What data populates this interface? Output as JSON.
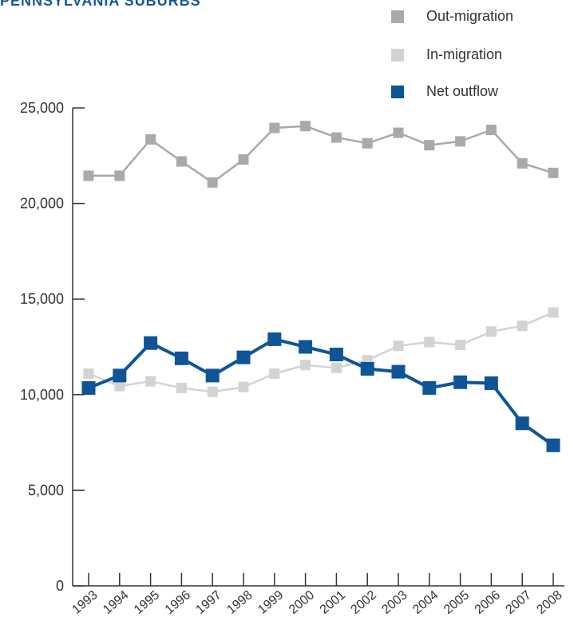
{
  "title": "PENNSYLVANIA SUBURBS",
  "chart_data": {
    "type": "line",
    "x": [
      "1993",
      "1994",
      "1995",
      "1996",
      "1997",
      "1998",
      "1999",
      "2000",
      "2001",
      "2002",
      "2003",
      "2004",
      "2005",
      "2006",
      "2007",
      "2008"
    ],
    "ylim": [
      0,
      25000
    ],
    "yticks": [
      0,
      5000,
      10000,
      15000,
      20000,
      25000
    ],
    "ytick_labels": [
      "0",
      "5,000",
      "10,000",
      "15,000",
      "20,000",
      "25,000"
    ],
    "grid": false,
    "legend_position": "top-right",
    "series": [
      {
        "name": "Out-migration",
        "color": "#a7a9ac",
        "marker": "square",
        "values": [
          21450,
          21450,
          23350,
          22200,
          21100,
          22300,
          23950,
          24050,
          23450,
          23150,
          23700,
          23050,
          23250,
          23850,
          22100,
          21600
        ]
      },
      {
        "name": "In-migration",
        "color": "#d1d3d4",
        "marker": "square",
        "values": [
          11100,
          10450,
          10700,
          10350,
          10150,
          10400,
          11100,
          11550,
          11400,
          11800,
          12550,
          12750,
          12600,
          13300,
          13600,
          14300
        ]
      },
      {
        "name": "Net outflow",
        "color": "#0f5496",
        "marker": "square",
        "values": [
          10350,
          11000,
          12700,
          11900,
          11000,
          11950,
          12900,
          12500,
          12100,
          11350,
          11200,
          10350,
          10650,
          10600,
          8500,
          7350
        ]
      }
    ]
  }
}
